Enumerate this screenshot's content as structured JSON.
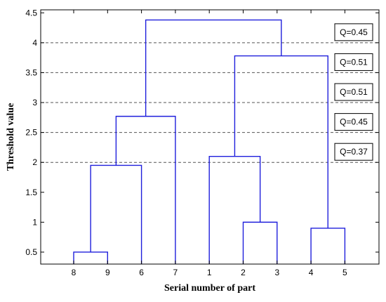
{
  "chart_data": {
    "type": "dendrogram",
    "xlabel": "Serial number of part",
    "ylabel": "Threshold value",
    "ylim": [
      0.3,
      4.55
    ],
    "yticks": [
      "0.5",
      "1",
      "1.5",
      "2",
      "2.5",
      "3",
      "3.5",
      "4",
      "4.5"
    ],
    "leaf_order": [
      "8",
      "9",
      "6",
      "7",
      "1",
      "2",
      "3",
      "4",
      "5"
    ],
    "merges": [
      {
        "left": "8",
        "right": "9",
        "height": 0.5
      },
      {
        "left": "2",
        "right": "3",
        "height": 1.0
      },
      {
        "left": "4",
        "right": "5",
        "height": 0.9
      },
      {
        "left": "8-9",
        "right": "6",
        "height": 1.95
      },
      {
        "left": "1",
        "right": "2-3",
        "height": 2.1
      },
      {
        "left": "8-9-6",
        "right": "7",
        "height": 2.77
      },
      {
        "left": "1-2-3",
        "right": "4-5",
        "height": 3.78
      },
      {
        "left": "8-9-6-7",
        "right": "1-2-3-4-5",
        "height": 4.38
      }
    ],
    "thresholds": [
      {
        "value": 4.0,
        "label": "Q=0.45"
      },
      {
        "value": 3.5,
        "label": "Q=0.51"
      },
      {
        "value": 3.0,
        "label": "Q=0.51"
      },
      {
        "value": 2.5,
        "label": "Q=0.45"
      },
      {
        "value": 2.0,
        "label": "Q=0.37"
      }
    ],
    "grid": false,
    "colors": {
      "tree": "#1f1fdc",
      "threshold": "#555555",
      "axis": "#000000"
    }
  }
}
